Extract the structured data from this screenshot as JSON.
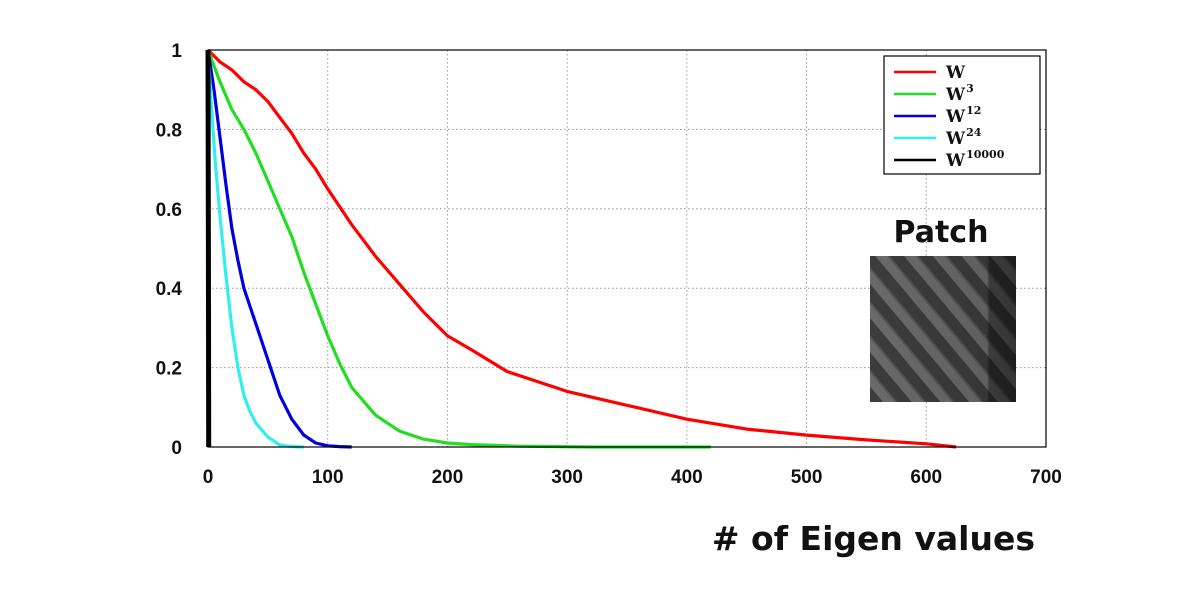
{
  "chart_data": {
    "type": "line",
    "xlabel": "# of Eigen values",
    "ylabel": "",
    "xlim": [
      0,
      700
    ],
    "ylim": [
      0,
      1
    ],
    "grid": true,
    "legend_position": "top-right",
    "x_ticks": [
      0,
      100,
      200,
      300,
      400,
      500,
      600,
      700
    ],
    "y_ticks": [
      0,
      0.2,
      0.4,
      0.6,
      0.8,
      1
    ],
    "y_tick_labels": [
      "0",
      "0.2",
      "0.4",
      "0.6",
      "0.8",
      "1"
    ],
    "series": [
      {
        "label_base": "W",
        "label_exp": "",
        "color": "#ff0000",
        "x": [
          0,
          10,
          20,
          30,
          40,
          50,
          60,
          70,
          80,
          90,
          100,
          120,
          140,
          160,
          180,
          200,
          220,
          250,
          300,
          350,
          400,
          450,
          500,
          550,
          600,
          625
        ],
        "y": [
          1.0,
          0.97,
          0.95,
          0.92,
          0.9,
          0.87,
          0.83,
          0.79,
          0.74,
          0.7,
          0.65,
          0.56,
          0.48,
          0.41,
          0.34,
          0.28,
          0.245,
          0.19,
          0.14,
          0.105,
          0.07,
          0.045,
          0.03,
          0.018,
          0.008,
          0.0
        ]
      },
      {
        "label_base": "W",
        "label_exp": "3",
        "color": "#22dd22",
        "x": [
          0,
          5,
          10,
          20,
          30,
          40,
          50,
          60,
          70,
          80,
          90,
          100,
          110,
          120,
          140,
          160,
          180,
          200,
          220,
          260,
          320,
          420
        ],
        "y": [
          1.0,
          0.96,
          0.92,
          0.85,
          0.8,
          0.74,
          0.67,
          0.6,
          0.53,
          0.44,
          0.36,
          0.28,
          0.21,
          0.15,
          0.08,
          0.04,
          0.02,
          0.01,
          0.006,
          0.002,
          0.0,
          0.0
        ]
      },
      {
        "label_base": "W",
        "label_exp": "12",
        "color": "#0000dd",
        "x": [
          0,
          5,
          10,
          15,
          20,
          25,
          30,
          40,
          50,
          60,
          70,
          80,
          90,
          100,
          110,
          120
        ],
        "y": [
          1.0,
          0.9,
          0.78,
          0.66,
          0.55,
          0.47,
          0.4,
          0.31,
          0.22,
          0.13,
          0.07,
          0.03,
          0.01,
          0.003,
          0.001,
          0.0
        ]
      },
      {
        "label_base": "W",
        "label_exp": "24",
        "color": "#33eeee",
        "x": [
          0,
          3,
          6,
          10,
          15,
          20,
          25,
          30,
          35,
          40,
          50,
          60,
          70,
          80
        ],
        "y": [
          1.0,
          0.85,
          0.72,
          0.58,
          0.43,
          0.3,
          0.2,
          0.13,
          0.09,
          0.06,
          0.025,
          0.005,
          0.001,
          0.0
        ]
      },
      {
        "label_base": "W",
        "label_exp": "10000",
        "color": "#000000",
        "x": [
          0,
          0.3,
          0.6
        ],
        "y": [
          1.0,
          0.5,
          0.0
        ]
      }
    ]
  },
  "inset": {
    "title": "Patch",
    "image_description_name": "diagonal-stripe-texture-patch"
  }
}
